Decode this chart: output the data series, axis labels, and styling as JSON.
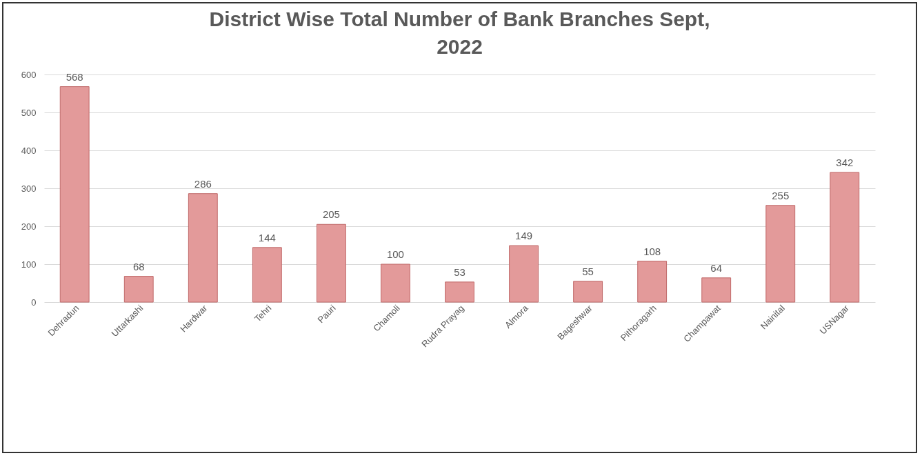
{
  "chart_data": {
    "type": "bar",
    "title": "District Wise Total Number of Bank Branches Sept, 2022",
    "categories": [
      "Dehradun",
      "Uttarkashi",
      "Hardwar",
      "Tehri",
      "Pauri",
      "Chamoli",
      "Rudra Prayag",
      "Almora",
      "Bageshwar",
      "Pithoragarh",
      "Champawat",
      "Nainital",
      "USNagar"
    ],
    "values": [
      568,
      68,
      286,
      144,
      205,
      100,
      53,
      149,
      55,
      108,
      64,
      255,
      342
    ],
    "color": "#e39a9a",
    "ylim": [
      0,
      600
    ],
    "yticks": [
      0,
      100,
      200,
      300,
      400,
      500,
      600
    ],
    "grid": "y",
    "data_labels": true
  }
}
